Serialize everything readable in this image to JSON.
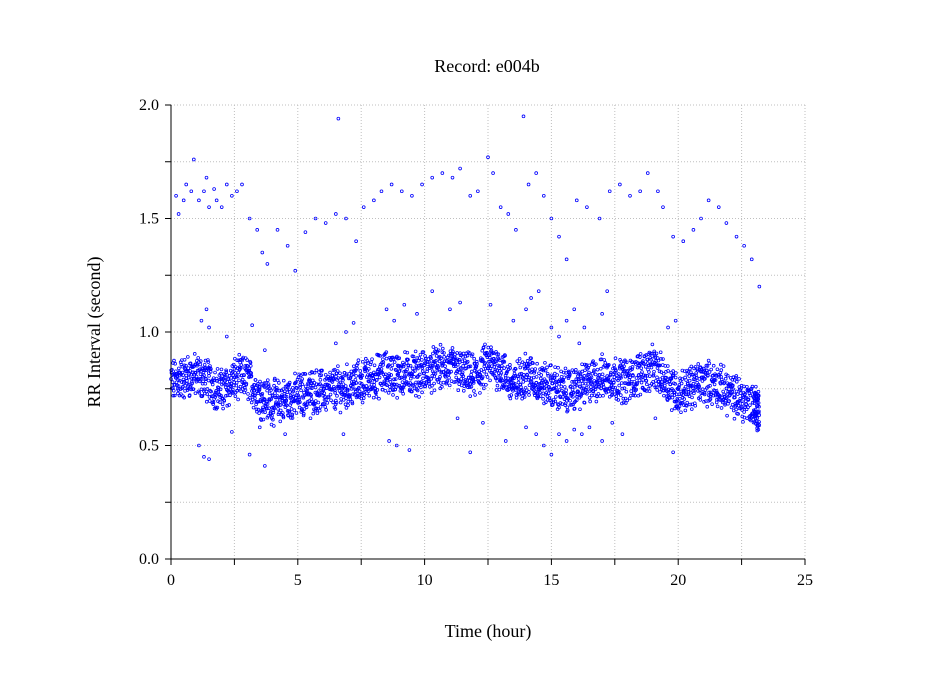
{
  "chart_data": {
    "type": "scatter",
    "title": "Record:  e004b",
    "xlabel": "Time (hour)",
    "ylabel": "RR Interval (second)",
    "xlim": [
      0,
      25
    ],
    "ylim": [
      0,
      2
    ],
    "x_ticks": [
      0,
      5,
      10,
      15,
      20,
      25
    ],
    "x_tick_labels": [
      "0",
      "5",
      "10",
      "15",
      "20",
      "25"
    ],
    "y_ticks": [
      0,
      0.5,
      1,
      1.5,
      2
    ],
    "y_tick_labels": [
      "0.0",
      "0.5",
      "1.0",
      "1.5",
      "2.0"
    ],
    "grid": true,
    "legend": "none",
    "marker_color": "#0000ff",
    "series": [
      {
        "baseline_trend": [
          [
            0.0,
            0.78
          ],
          [
            0.5,
            0.8
          ],
          [
            1.0,
            0.81
          ],
          [
            1.5,
            0.78
          ],
          [
            2.0,
            0.74
          ],
          [
            2.5,
            0.79
          ],
          [
            3.0,
            0.8
          ],
          [
            3.5,
            0.72
          ],
          [
            4.0,
            0.69
          ],
          [
            4.5,
            0.7
          ],
          [
            5.0,
            0.72
          ],
          [
            5.5,
            0.74
          ],
          [
            6.0,
            0.74
          ],
          [
            6.5,
            0.75
          ],
          [
            7.0,
            0.76
          ],
          [
            7.5,
            0.78
          ],
          [
            8.0,
            0.8
          ],
          [
            8.5,
            0.82
          ],
          [
            9.0,
            0.81
          ],
          [
            9.5,
            0.82
          ],
          [
            10.0,
            0.82
          ],
          [
            10.5,
            0.84
          ],
          [
            11.0,
            0.84
          ],
          [
            11.5,
            0.82
          ],
          [
            12.0,
            0.8
          ],
          [
            12.5,
            0.86
          ],
          [
            13.0,
            0.84
          ],
          [
            13.5,
            0.76
          ],
          [
            14.0,
            0.82
          ],
          [
            14.5,
            0.78
          ],
          [
            15.0,
            0.76
          ],
          [
            15.5,
            0.74
          ],
          [
            16.0,
            0.75
          ],
          [
            16.5,
            0.78
          ],
          [
            17.0,
            0.8
          ],
          [
            17.5,
            0.8
          ],
          [
            18.0,
            0.78
          ],
          [
            18.5,
            0.82
          ],
          [
            19.0,
            0.84
          ],
          [
            19.5,
            0.79
          ],
          [
            20.0,
            0.73
          ],
          [
            20.5,
            0.76
          ],
          [
            21.0,
            0.78
          ],
          [
            21.5,
            0.77
          ],
          [
            22.0,
            0.73
          ],
          [
            22.5,
            0.7
          ],
          [
            23.0,
            0.68
          ],
          [
            23.2,
            0.65
          ]
        ],
        "outliers_high": [
          [
            0.2,
            1.6
          ],
          [
            0.3,
            1.52
          ],
          [
            0.5,
            1.58
          ],
          [
            0.6,
            1.65
          ],
          [
            0.8,
            1.62
          ],
          [
            0.9,
            1.76
          ],
          [
            1.1,
            1.58
          ],
          [
            1.3,
            1.62
          ],
          [
            1.4,
            1.68
          ],
          [
            1.5,
            1.55
          ],
          [
            1.7,
            1.63
          ],
          [
            1.8,
            1.58
          ],
          [
            2.0,
            1.55
          ],
          [
            2.2,
            1.65
          ],
          [
            2.4,
            1.6
          ],
          [
            2.6,
            1.62
          ],
          [
            2.8,
            1.65
          ],
          [
            3.1,
            1.5
          ],
          [
            3.4,
            1.45
          ],
          [
            3.6,
            1.35
          ],
          [
            3.8,
            1.3
          ],
          [
            4.2,
            1.45
          ],
          [
            4.6,
            1.38
          ],
          [
            4.9,
            1.27
          ],
          [
            5.3,
            1.44
          ],
          [
            5.7,
            1.5
          ],
          [
            6.1,
            1.48
          ],
          [
            6.5,
            1.52
          ],
          [
            6.6,
            1.94
          ],
          [
            6.9,
            1.5
          ],
          [
            7.3,
            1.4
          ],
          [
            7.6,
            1.55
          ],
          [
            8.0,
            1.58
          ],
          [
            8.3,
            1.62
          ],
          [
            8.7,
            1.65
          ],
          [
            9.1,
            1.62
          ],
          [
            9.5,
            1.6
          ],
          [
            9.9,
            1.65
          ],
          [
            10.3,
            1.68
          ],
          [
            10.7,
            1.7
          ],
          [
            11.1,
            1.68
          ],
          [
            11.4,
            1.72
          ],
          [
            11.8,
            1.6
          ],
          [
            12.1,
            1.62
          ],
          [
            12.5,
            1.77
          ],
          [
            12.7,
            1.7
          ],
          [
            13.0,
            1.55
          ],
          [
            13.3,
            1.52
          ],
          [
            13.6,
            1.45
          ],
          [
            13.9,
            1.95
          ],
          [
            14.1,
            1.65
          ],
          [
            14.4,
            1.7
          ],
          [
            14.7,
            1.6
          ],
          [
            15.0,
            1.5
          ],
          [
            15.3,
            1.42
          ],
          [
            15.6,
            1.32
          ],
          [
            16.0,
            1.58
          ],
          [
            16.4,
            1.55
          ],
          [
            16.9,
            1.5
          ],
          [
            17.3,
            1.62
          ],
          [
            17.7,
            1.65
          ],
          [
            18.1,
            1.6
          ],
          [
            18.5,
            1.62
          ],
          [
            18.8,
            1.7
          ],
          [
            19.2,
            1.62
          ],
          [
            19.4,
            1.55
          ],
          [
            19.8,
            1.42
          ],
          [
            20.2,
            1.4
          ],
          [
            20.6,
            1.45
          ],
          [
            20.9,
            1.5
          ],
          [
            21.2,
            1.58
          ],
          [
            21.6,
            1.55
          ],
          [
            21.9,
            1.48
          ],
          [
            22.3,
            1.42
          ],
          [
            22.6,
            1.38
          ],
          [
            22.9,
            1.32
          ],
          [
            23.2,
            1.2
          ]
        ],
        "outliers_mid": [
          [
            1.2,
            1.05
          ],
          [
            1.4,
            1.1
          ],
          [
            1.5,
            1.02
          ],
          [
            2.2,
            0.98
          ],
          [
            3.2,
            1.03
          ],
          [
            3.7,
            0.92
          ],
          [
            6.5,
            0.95
          ],
          [
            6.9,
            1.0
          ],
          [
            7.2,
            1.04
          ],
          [
            8.5,
            1.1
          ],
          [
            8.8,
            1.05
          ],
          [
            9.2,
            1.12
          ],
          [
            9.7,
            1.08
          ],
          [
            10.3,
            1.18
          ],
          [
            11.0,
            1.1
          ],
          [
            11.4,
            1.13
          ],
          [
            12.6,
            1.12
          ],
          [
            13.5,
            1.05
          ],
          [
            14.0,
            1.1
          ],
          [
            14.2,
            1.15
          ],
          [
            14.5,
            1.18
          ],
          [
            15.0,
            1.02
          ],
          [
            15.3,
            0.98
          ],
          [
            15.6,
            1.05
          ],
          [
            15.9,
            1.1
          ],
          [
            16.1,
            0.95
          ],
          [
            16.3,
            1.02
          ],
          [
            17.0,
            1.08
          ],
          [
            17.2,
            1.18
          ],
          [
            19.6,
            1.02
          ],
          [
            19.9,
            1.05
          ]
        ],
        "outliers_low": [
          [
            1.1,
            0.5
          ],
          [
            1.3,
            0.45
          ],
          [
            1.5,
            0.44
          ],
          [
            2.4,
            0.56
          ],
          [
            3.1,
            0.46
          ],
          [
            3.5,
            0.58
          ],
          [
            3.7,
            0.41
          ],
          [
            4.5,
            0.55
          ],
          [
            5.5,
            0.62
          ],
          [
            6.8,
            0.55
          ],
          [
            8.6,
            0.52
          ],
          [
            8.9,
            0.5
          ],
          [
            9.4,
            0.48
          ],
          [
            11.3,
            0.62
          ],
          [
            11.8,
            0.47
          ],
          [
            12.3,
            0.6
          ],
          [
            13.2,
            0.52
          ],
          [
            14.0,
            0.58
          ],
          [
            14.4,
            0.55
          ],
          [
            14.7,
            0.5
          ],
          [
            15.0,
            0.46
          ],
          [
            15.3,
            0.55
          ],
          [
            15.6,
            0.52
          ],
          [
            15.9,
            0.57
          ],
          [
            16.2,
            0.55
          ],
          [
            16.5,
            0.58
          ],
          [
            17.0,
            0.52
          ],
          [
            17.4,
            0.6
          ],
          [
            17.8,
            0.55
          ],
          [
            19.1,
            0.62
          ],
          [
            19.8,
            0.47
          ]
        ]
      }
    ]
  }
}
